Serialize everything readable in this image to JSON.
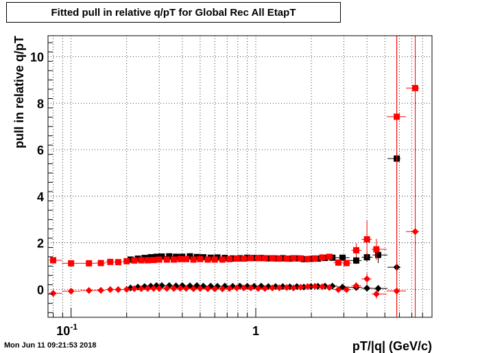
{
  "chart_data": {
    "type": "scatter",
    "title": "Fitted pull in relative q/pT for Global Rec All EtapT",
    "xlabel": "pT/|q| (GeV/c)",
    "ylabel": "pull in relative q/pT",
    "x_scale": "log",
    "xlim": [
      0.075,
      9.0
    ],
    "ylim": [
      -1.2,
      10.9
    ],
    "grid": true,
    "x_tick_labels": [
      {
        "value": 0.1,
        "label": "10",
        "sup": "-1"
      },
      {
        "value": 1,
        "label": "1",
        "sup": ""
      }
    ],
    "y_ticks": [
      0,
      2,
      4,
      6,
      8,
      10
    ],
    "colors": {
      "black": "#000000",
      "red": "#ff0000"
    },
    "series": [
      {
        "color": "#000000",
        "marker": "square",
        "x": [
          0.21,
          0.23,
          0.25,
          0.27,
          0.29,
          0.31,
          0.34,
          0.37,
          0.4,
          0.44,
          0.48,
          0.52,
          0.57,
          0.62,
          0.68,
          0.75,
          0.82,
          0.9,
          0.98,
          1.07,
          1.17,
          1.28,
          1.4,
          1.53,
          1.67,
          1.82,
          1.99,
          2.17,
          2.37,
          2.6,
          2.95,
          3.5,
          4.0,
          4.6,
          5.8
        ],
        "y": [
          1.28,
          1.32,
          1.35,
          1.38,
          1.4,
          1.41,
          1.42,
          1.4,
          1.4,
          1.42,
          1.39,
          1.38,
          1.36,
          1.37,
          1.35,
          1.33,
          1.34,
          1.36,
          1.35,
          1.35,
          1.33,
          1.33,
          1.34,
          1.32,
          1.33,
          1.3,
          1.31,
          1.32,
          1.35,
          1.36,
          1.36,
          1.24,
          1.38,
          1.48,
          5.62
        ],
        "yerr": [
          0.05,
          0.05,
          0.05,
          0.05,
          0.05,
          0.05,
          0.05,
          0.05,
          0.05,
          0.05,
          0.05,
          0.05,
          0.05,
          0.05,
          0.05,
          0.05,
          0.05,
          0.05,
          0.05,
          0.05,
          0.05,
          0.05,
          0.05,
          0.05,
          0.06,
          0.06,
          0.06,
          0.07,
          0.07,
          0.08,
          0.1,
          0.15,
          0.2,
          0.35,
          0.3
        ]
      },
      {
        "color": "#ff0000",
        "marker": "square",
        "x": [
          0.08,
          0.1,
          0.125,
          0.145,
          0.163,
          0.18,
          0.2,
          0.22,
          0.24,
          0.26,
          0.28,
          0.3,
          0.33,
          0.36,
          0.39,
          0.42,
          0.46,
          0.5,
          0.55,
          0.6,
          0.66,
          0.72,
          0.79,
          0.86,
          0.94,
          1.03,
          1.12,
          1.23,
          1.34,
          1.47,
          1.6,
          1.75,
          1.91,
          2.09,
          2.29,
          2.5,
          2.8,
          3.1,
          3.5,
          4.0,
          4.5,
          5.8,
          7.3
        ],
        "y": [
          1.25,
          1.12,
          1.12,
          1.13,
          1.18,
          1.17,
          1.21,
          1.24,
          1.25,
          1.25,
          1.26,
          1.28,
          1.28,
          1.28,
          1.3,
          1.3,
          1.28,
          1.3,
          1.28,
          1.28,
          1.28,
          1.3,
          1.32,
          1.32,
          1.34,
          1.34,
          1.34,
          1.34,
          1.32,
          1.32,
          1.34,
          1.33,
          1.3,
          1.33,
          1.37,
          1.4,
          1.15,
          1.13,
          1.68,
          2.15,
          1.72,
          7.42,
          8.65
        ],
        "yerr": [
          0.05,
          0.04,
          0.04,
          0.04,
          0.04,
          0.04,
          0.04,
          0.04,
          0.04,
          0.04,
          0.04,
          0.04,
          0.04,
          0.04,
          0.04,
          0.04,
          0.04,
          0.04,
          0.04,
          0.04,
          0.04,
          0.04,
          0.04,
          0.04,
          0.04,
          0.04,
          0.04,
          0.05,
          0.05,
          0.05,
          0.05,
          0.06,
          0.06,
          0.07,
          0.08,
          0.08,
          0.1,
          0.12,
          0.3,
          0.8,
          0.45,
          12.0,
          12.0
        ]
      },
      {
        "color": "#000000",
        "marker": "diamond",
        "x": [
          0.21,
          0.23,
          0.25,
          0.27,
          0.29,
          0.31,
          0.34,
          0.37,
          0.4,
          0.44,
          0.48,
          0.52,
          0.57,
          0.62,
          0.68,
          0.75,
          0.82,
          0.9,
          0.98,
          1.07,
          1.17,
          1.28,
          1.4,
          1.53,
          1.67,
          1.82,
          1.99,
          2.17,
          2.37,
          2.6,
          2.95,
          3.5,
          4.0,
          4.6,
          5.8
        ],
        "y": [
          0.06,
          0.1,
          0.12,
          0.14,
          0.16,
          0.16,
          0.16,
          0.15,
          0.16,
          0.15,
          0.16,
          0.14,
          0.14,
          0.13,
          0.14,
          0.13,
          0.14,
          0.13,
          0.13,
          0.14,
          0.12,
          0.12,
          0.12,
          0.11,
          0.12,
          0.1,
          0.12,
          0.13,
          0.14,
          0.14,
          0.1,
          0.08,
          0.05,
          0.04,
          0.95
        ],
        "yerr": [
          0.03,
          0.03,
          0.03,
          0.03,
          0.03,
          0.03,
          0.03,
          0.03,
          0.03,
          0.03,
          0.03,
          0.03,
          0.03,
          0.03,
          0.03,
          0.03,
          0.03,
          0.03,
          0.03,
          0.03,
          0.03,
          0.03,
          0.03,
          0.03,
          0.04,
          0.04,
          0.04,
          0.04,
          0.05,
          0.05,
          0.06,
          0.08,
          0.1,
          0.15,
          0.25
        ]
      },
      {
        "color": "#ff0000",
        "marker": "diamond",
        "x": [
          0.08,
          0.1,
          0.125,
          0.145,
          0.163,
          0.18,
          0.2,
          0.22,
          0.24,
          0.26,
          0.28,
          0.3,
          0.33,
          0.36,
          0.39,
          0.42,
          0.46,
          0.5,
          0.55,
          0.6,
          0.66,
          0.72,
          0.79,
          0.86,
          0.94,
          1.03,
          1.12,
          1.23,
          1.34,
          1.47,
          1.6,
          1.75,
          1.91,
          2.09,
          2.29,
          2.5,
          2.8,
          3.1,
          3.5,
          4.0,
          4.5,
          5.8,
          7.3
        ],
        "y": [
          -0.17,
          -0.08,
          -0.05,
          -0.04,
          -0.01,
          -0.01,
          0.0,
          0.03,
          0.03,
          0.04,
          0.04,
          0.04,
          0.04,
          0.04,
          0.05,
          0.04,
          0.03,
          0.04,
          0.03,
          0.02,
          0.02,
          0.04,
          0.06,
          0.06,
          0.06,
          0.04,
          0.04,
          0.06,
          0.07,
          0.08,
          0.06,
          0.09,
          0.12,
          0.13,
          0.11,
          0.08,
          -0.01,
          -0.01,
          0.15,
          0.45,
          -0.2,
          -0.07,
          2.48
        ],
        "yerr": [
          0.04,
          0.03,
          0.03,
          0.03,
          0.03,
          0.03,
          0.03,
          0.03,
          0.03,
          0.03,
          0.03,
          0.03,
          0.03,
          0.03,
          0.03,
          0.03,
          0.03,
          0.03,
          0.03,
          0.03,
          0.03,
          0.03,
          0.03,
          0.03,
          0.03,
          0.03,
          0.03,
          0.03,
          0.04,
          0.04,
          0.04,
          0.04,
          0.05,
          0.05,
          0.05,
          0.06,
          0.08,
          0.1,
          0.15,
          0.25,
          0.2,
          12.0,
          12.0
        ]
      }
    ]
  },
  "timestamp": "Mon Jun 11 09:21:53 2018"
}
